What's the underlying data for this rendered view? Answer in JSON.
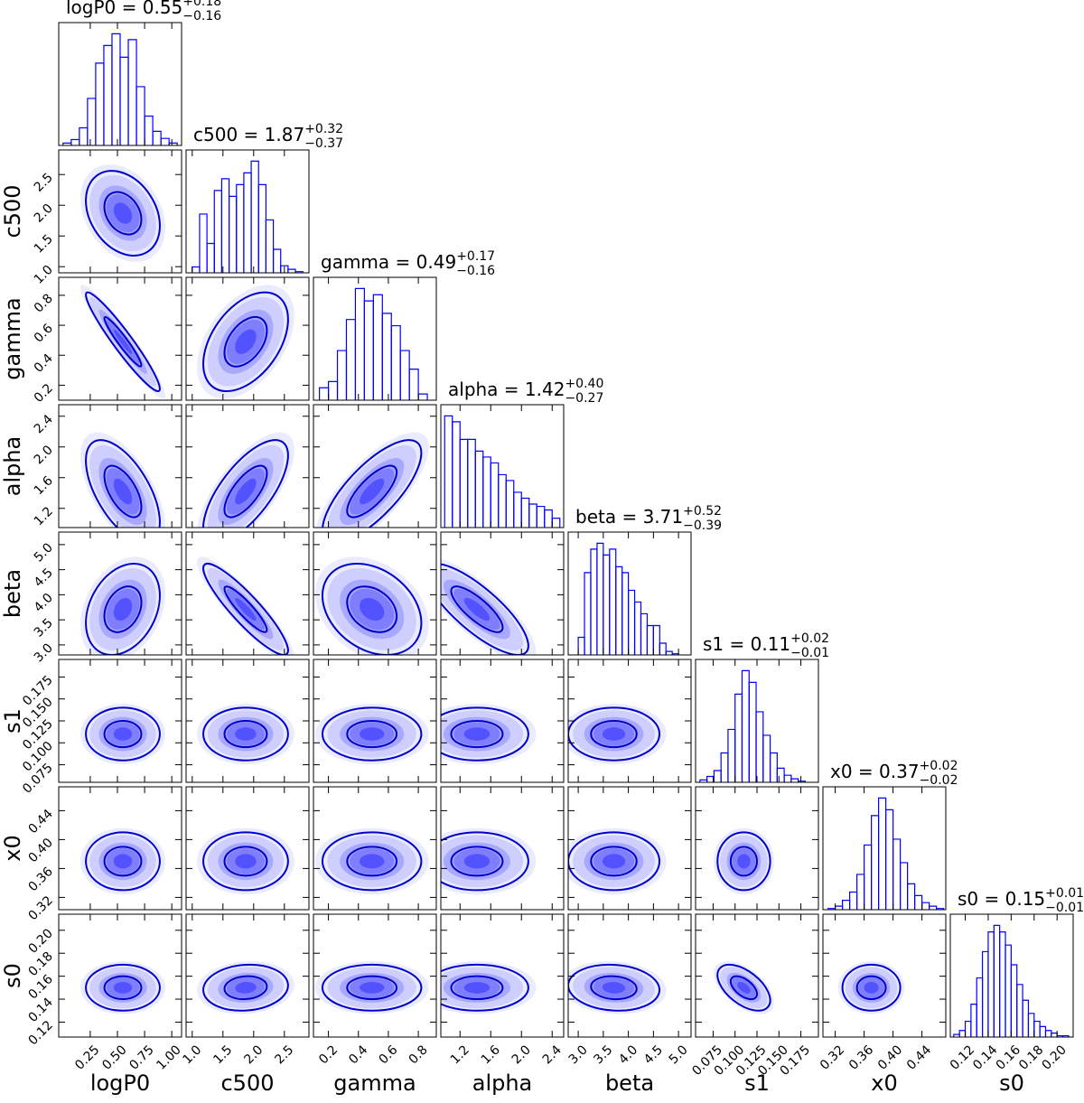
{
  "chart_data": {
    "type": "corner",
    "color": "#0000ff",
    "parameters": [
      {
        "name": "logP0",
        "title": "logP0 = 0.55",
        "err_plus": {
          "value": 0.18,
          "label": "+0.18"
        },
        "err_minus": {
          "value": -0.16,
          "label": "−0.16"
        },
        "median": 0.55,
        "lim": [
          -0.04,
          1.09
        ],
        "ticks": [
          0.25,
          {
            "value": 0.5,
            "label": "0.50"
          },
          0.75,
          {
            "value": 1.0,
            "label": "1.00"
          }
        ],
        "bins": [
          0.0,
          0.075,
          0.15,
          0.225,
          0.3,
          0.375,
          0.45,
          0.525,
          0.6,
          0.675,
          0.75,
          0.825,
          0.9,
          0.975,
          1.05
        ],
        "counts": [
          2,
          5,
          15,
          40,
          70,
          85,
          95,
          75,
          90,
          50,
          25,
          12,
          6,
          2
        ]
      },
      {
        "name": "c500",
        "title": "c500 = 1.87",
        "err_plus": {
          "value": 0.32,
          "label": "+0.32"
        },
        "err_minus": {
          "value": -0.37,
          "label": "−0.37"
        },
        "median": 1.87,
        "lim": [
          0.9,
          2.9
        ],
        "ticks": [
          {
            "value": 1.0,
            "label": "1.0"
          },
          1.5,
          {
            "value": 2.0,
            "label": "2.0"
          },
          2.5
        ],
        "bins": [
          1.0,
          1.12,
          1.24,
          1.36,
          1.48,
          1.6,
          1.72,
          1.84,
          1.96,
          2.08,
          2.2,
          2.32,
          2.44,
          2.56,
          2.68,
          2.8
        ],
        "counts": [
          5,
          50,
          25,
          70,
          80,
          65,
          75,
          85,
          95,
          75,
          45,
          20,
          6,
          3,
          1
        ]
      },
      {
        "name": "gamma",
        "title": "gamma = 0.49",
        "err_plus": {
          "value": 0.17,
          "label": "+0.17"
        },
        "err_minus": {
          "value": -0.16,
          "label": "−0.16"
        },
        "median": 0.49,
        "lim": [
          0.1,
          0.92
        ],
        "ticks": [
          0.2,
          0.4,
          0.6,
          0.8
        ],
        "bins": [
          0.14,
          0.2,
          0.26,
          0.32,
          0.38,
          0.44,
          0.5,
          0.56,
          0.62,
          0.68,
          0.74,
          0.8,
          0.86
        ],
        "counts": [
          10,
          15,
          40,
          65,
          90,
          80,
          85,
          70,
          60,
          40,
          25,
          5
        ]
      },
      {
        "name": "alpha",
        "title": "alpha = 1.42",
        "err_plus": {
          "value": 0.4,
          "label": "+0.40"
        },
        "err_minus": {
          "value": -0.27,
          "label": "−0.27"
        },
        "median": 1.42,
        "lim": [
          0.95,
          2.55
        ],
        "ticks": [
          1.2,
          1.6,
          {
            "value": 2.0,
            "label": "2.0"
          },
          2.4
        ],
        "bins": [
          1.0,
          1.1,
          1.2,
          1.3,
          1.4,
          1.5,
          1.6,
          1.7,
          1.8,
          1.9,
          2.0,
          2.1,
          2.2,
          2.3,
          2.4,
          2.5
        ],
        "counts": [
          95,
          90,
          75,
          75,
          65,
          60,
          55,
          45,
          40,
          30,
          25,
          20,
          18,
          15,
          8
        ]
      },
      {
        "name": "beta",
        "title": "beta = 3.71",
        "err_plus": {
          "value": 0.52,
          "label": "+0.52"
        },
        "err_minus": {
          "value": -0.39,
          "label": "−0.39"
        },
        "median": 3.71,
        "lim": [
          2.8,
          5.25
        ],
        "ticks": [
          {
            "value": 3.0,
            "label": "3.0"
          },
          3.5,
          {
            "value": 4.0,
            "label": "4.0"
          },
          4.5,
          {
            "value": 5.0,
            "label": "5.0"
          }
        ],
        "bins": [
          3.0,
          3.125,
          3.25,
          3.375,
          3.5,
          3.625,
          3.75,
          3.875,
          4.0,
          4.125,
          4.25,
          4.375,
          4.5,
          4.625,
          4.75,
          4.875,
          5.0
        ],
        "counts": [
          15,
          70,
          90,
          95,
          85,
          90,
          75,
          70,
          55,
          45,
          35,
          25,
          25,
          10,
          3,
          1
        ]
      },
      {
        "name": "s1",
        "title": "s1 = 0.11",
        "err_plus": {
          "value": 0.02,
          "label": "+0.02"
        },
        "err_minus": {
          "value": -0.01,
          "label": "−0.01"
        },
        "median": 0.11,
        "lim": [
          0.055,
          0.195
        ],
        "ticks": [
          0.075,
          {
            "value": 0.1,
            "label": "0.100"
          },
          0.125,
          {
            "value": 0.15,
            "label": "0.150"
          },
          0.175
        ],
        "bins": [
          0.06,
          0.068,
          0.076,
          0.084,
          0.092,
          0.1,
          0.108,
          0.116,
          0.124,
          0.132,
          0.14,
          0.148,
          0.156,
          0.164,
          0.172,
          0.18
        ],
        "counts": [
          2,
          5,
          10,
          25,
          45,
          75,
          95,
          85,
          60,
          40,
          25,
          12,
          6,
          3,
          1
        ]
      },
      {
        "name": "x0",
        "title": "x0 = 0.37",
        "err_plus": {
          "value": 0.02,
          "label": "+0.02"
        },
        "err_minus": {
          "value": -0.02,
          "label": "−0.02"
        },
        "median": 0.37,
        "lim": [
          0.303,
          0.473
        ],
        "ticks": [
          0.32,
          0.36,
          {
            "value": 0.4,
            "label": "0.40"
          },
          0.44
        ],
        "bins": [
          0.31,
          0.32,
          0.33,
          0.34,
          0.35,
          0.36,
          0.37,
          0.38,
          0.39,
          0.4,
          0.41,
          0.42,
          0.43,
          0.44,
          0.45,
          0.46,
          0.47
        ],
        "counts": [
          1,
          3,
          8,
          15,
          30,
          55,
          80,
          95,
          85,
          60,
          40,
          22,
          12,
          6,
          3,
          1
        ]
      },
      {
        "name": "s0",
        "title": "s0 = 0.15",
        "err_plus": {
          "value": 0.01,
          "label": "+0.01"
        },
        "err_minus": {
          "value": -0.01,
          "label": "−0.01"
        },
        "median": 0.15,
        "lim": [
          0.107,
          0.214
        ],
        "ticks": [
          0.12,
          0.14,
          0.16,
          0.18,
          {
            "value": 0.2,
            "label": "0.20"
          }
        ],
        "bins": [
          0.11,
          0.115,
          0.12,
          0.125,
          0.13,
          0.135,
          0.14,
          0.145,
          0.15,
          0.155,
          0.16,
          0.165,
          0.17,
          0.175,
          0.18,
          0.185,
          0.19,
          0.195,
          0.2,
          0.205,
          0.21
        ],
        "counts": [
          2,
          5,
          12,
          25,
          45,
          65,
          80,
          85,
          80,
          70,
          55,
          40,
          28,
          18,
          12,
          8,
          5,
          3,
          1,
          1
        ]
      }
    ],
    "correlations": [
      [
        0,
        1,
        -0.3
      ],
      [
        0,
        2,
        -0.95
      ],
      [
        0,
        3,
        -0.6
      ],
      [
        0,
        4,
        0.3
      ],
      [
        0,
        5,
        0.0
      ],
      [
        0,
        6,
        0.0
      ],
      [
        0,
        7,
        0.0
      ],
      [
        1,
        2,
        0.45
      ],
      [
        1,
        3,
        0.7
      ],
      [
        1,
        4,
        -0.9
      ],
      [
        1,
        5,
        0.0
      ],
      [
        1,
        6,
        0.0
      ],
      [
        1,
        7,
        0.1
      ],
      [
        2,
        3,
        0.75
      ],
      [
        2,
        4,
        -0.3
      ],
      [
        2,
        5,
        0.0
      ],
      [
        2,
        6,
        0.0
      ],
      [
        2,
        7,
        0.0
      ],
      [
        3,
        4,
        -0.8
      ],
      [
        3,
        5,
        0.0
      ],
      [
        3,
        6,
        0.0
      ],
      [
        3,
        7,
        0.0
      ],
      [
        4,
        5,
        0.0
      ],
      [
        4,
        6,
        0.0
      ],
      [
        4,
        7,
        -0.1
      ],
      [
        5,
        6,
        0.0
      ],
      [
        5,
        7,
        -0.55
      ],
      [
        6,
        7,
        0.0
      ]
    ]
  }
}
